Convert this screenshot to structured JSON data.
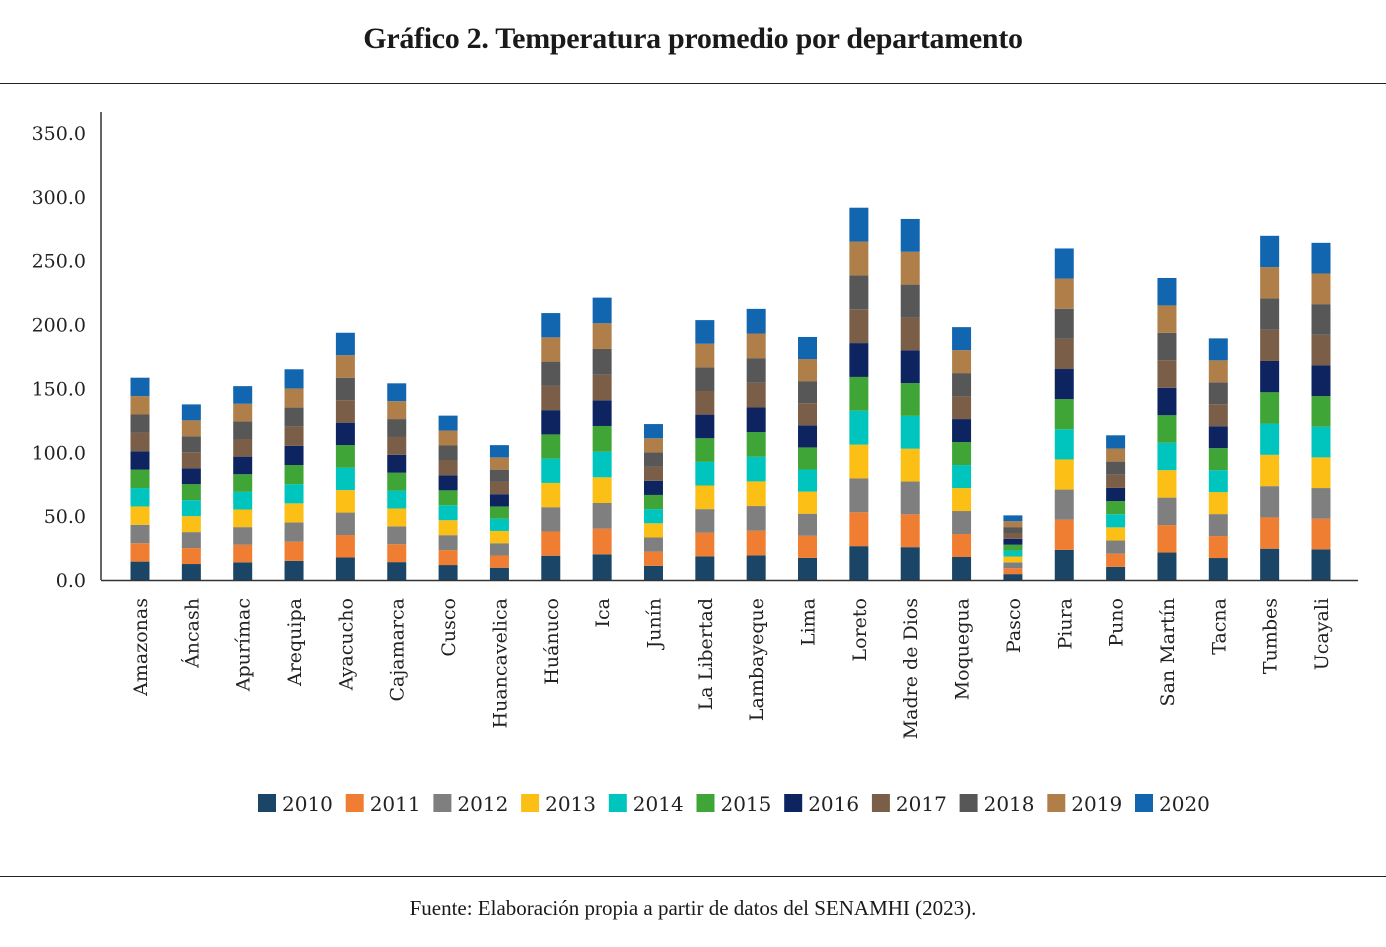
{
  "header": {
    "title": "Gráfico 2. Temperatura promedio por departamento"
  },
  "footer": {
    "source": "Fuente: Elaboración propia a partir de datos del SENAMHI (2023)."
  },
  "chart_data": {
    "type": "bar",
    "stacked": true,
    "title": "Gráfico 2. Temperatura promedio por departamento",
    "xlabel": "",
    "ylabel": "",
    "ylim": [
      0,
      350
    ],
    "yticks": [
      0,
      50,
      100,
      150,
      200,
      250,
      300,
      350
    ],
    "ytick_labels": [
      "0.0",
      "50.0",
      "100.0",
      "150.0",
      "200.0",
      "250.0",
      "300.0",
      "350.0"
    ],
    "grid": false,
    "legend_position": "bottom",
    "categories": [
      "Amazonas",
      "Áncash",
      "Apurímac",
      "Arequipa",
      "Ayacucho",
      "Cajamarca",
      "Cusco",
      "Huancavelica",
      "Huánuco",
      "Ica",
      "Junín",
      "La Libertad",
      "Lambayeque",
      "Lima",
      "Loreto",
      "Madre de Dios",
      "Moquegua",
      "Pasco",
      "Piura",
      "Puno",
      "San Martín",
      "Tacna",
      "Tumbes",
      "Ucayali"
    ],
    "series": [
      {
        "name": "2010",
        "color": "#1b4566",
        "values": [
          14.4,
          12.5,
          13.8,
          15.0,
          17.6,
          14.0,
          11.7,
          9.6,
          19.0,
          20.1,
          11.1,
          18.5,
          19.3,
          17.3,
          26.5,
          25.7,
          18.0,
          4.6,
          23.6,
          10.3,
          21.5,
          17.2,
          24.5,
          24.0
        ]
      },
      {
        "name": "2011",
        "color": "#ef7e33",
        "values": [
          14.4,
          12.5,
          13.8,
          15.0,
          17.6,
          14.0,
          11.7,
          9.6,
          19.0,
          20.1,
          11.1,
          18.5,
          19.3,
          17.3,
          26.5,
          25.7,
          18.0,
          4.6,
          23.6,
          10.3,
          21.5,
          17.2,
          24.5,
          24.0
        ]
      },
      {
        "name": "2012",
        "color": "#7f7f7f",
        "values": [
          14.4,
          12.5,
          13.8,
          15.0,
          17.6,
          14.0,
          11.7,
          9.6,
          19.0,
          20.1,
          11.1,
          18.5,
          19.3,
          17.3,
          26.5,
          25.7,
          18.0,
          4.6,
          23.6,
          10.3,
          21.5,
          17.2,
          24.5,
          24.0
        ]
      },
      {
        "name": "2013",
        "color": "#fbbf16",
        "values": [
          14.4,
          12.5,
          13.8,
          15.0,
          17.6,
          14.0,
          11.7,
          9.6,
          19.0,
          20.1,
          11.1,
          18.5,
          19.3,
          17.3,
          26.5,
          25.7,
          18.0,
          4.6,
          23.6,
          10.3,
          21.5,
          17.2,
          24.5,
          24.0
        ]
      },
      {
        "name": "2014",
        "color": "#00c5bf",
        "values": [
          14.4,
          12.5,
          13.8,
          15.0,
          17.6,
          14.0,
          11.7,
          9.6,
          19.0,
          20.1,
          11.1,
          18.5,
          19.3,
          17.3,
          26.5,
          25.7,
          18.0,
          4.6,
          23.6,
          10.3,
          21.5,
          17.2,
          24.5,
          24.0
        ]
      },
      {
        "name": "2015",
        "color": "#3fa537",
        "values": [
          14.4,
          12.5,
          13.8,
          15.0,
          17.6,
          14.0,
          11.7,
          9.6,
          19.0,
          20.1,
          11.1,
          18.5,
          19.3,
          17.3,
          26.5,
          25.7,
          18.0,
          4.6,
          23.6,
          10.3,
          21.5,
          17.2,
          24.5,
          24.0
        ]
      },
      {
        "name": "2016",
        "color": "#0d2461",
        "values": [
          14.4,
          12.5,
          13.8,
          15.0,
          17.6,
          14.0,
          11.7,
          9.6,
          19.0,
          20.1,
          11.1,
          18.5,
          19.3,
          17.3,
          26.5,
          25.7,
          18.0,
          4.6,
          23.6,
          10.3,
          21.5,
          17.2,
          24.5,
          24.0
        ]
      },
      {
        "name": "2017",
        "color": "#7b5e47",
        "values": [
          14.4,
          12.5,
          13.8,
          15.0,
          17.6,
          14.0,
          11.7,
          9.6,
          19.0,
          20.1,
          11.1,
          18.5,
          19.3,
          17.3,
          26.5,
          25.7,
          18.0,
          4.6,
          23.6,
          10.3,
          21.5,
          17.2,
          24.5,
          24.0
        ]
      },
      {
        "name": "2018",
        "color": "#575757",
        "values": [
          14.4,
          12.5,
          13.8,
          15.0,
          17.6,
          14.0,
          11.7,
          9.6,
          19.0,
          20.1,
          11.1,
          18.5,
          19.3,
          17.3,
          26.5,
          25.7,
          18.0,
          4.6,
          23.6,
          10.3,
          21.5,
          17.2,
          24.5,
          24.0
        ]
      },
      {
        "name": "2019",
        "color": "#b07f49",
        "values": [
          14.4,
          12.5,
          13.8,
          15.0,
          17.6,
          14.0,
          11.7,
          9.6,
          19.0,
          20.1,
          11.1,
          18.5,
          19.3,
          17.3,
          26.5,
          25.7,
          18.0,
          4.6,
          23.6,
          10.3,
          21.5,
          17.2,
          24.5,
          24.0
        ]
      },
      {
        "name": "2020",
        "color": "#1266b0",
        "values": [
          14.4,
          12.5,
          13.8,
          15.0,
          17.6,
          14.0,
          11.7,
          9.6,
          19.0,
          20.1,
          11.1,
          18.5,
          19.3,
          17.3,
          26.5,
          25.7,
          18.0,
          4.6,
          23.6,
          10.3,
          21.5,
          17.2,
          24.5,
          24.0
        ]
      }
    ]
  }
}
